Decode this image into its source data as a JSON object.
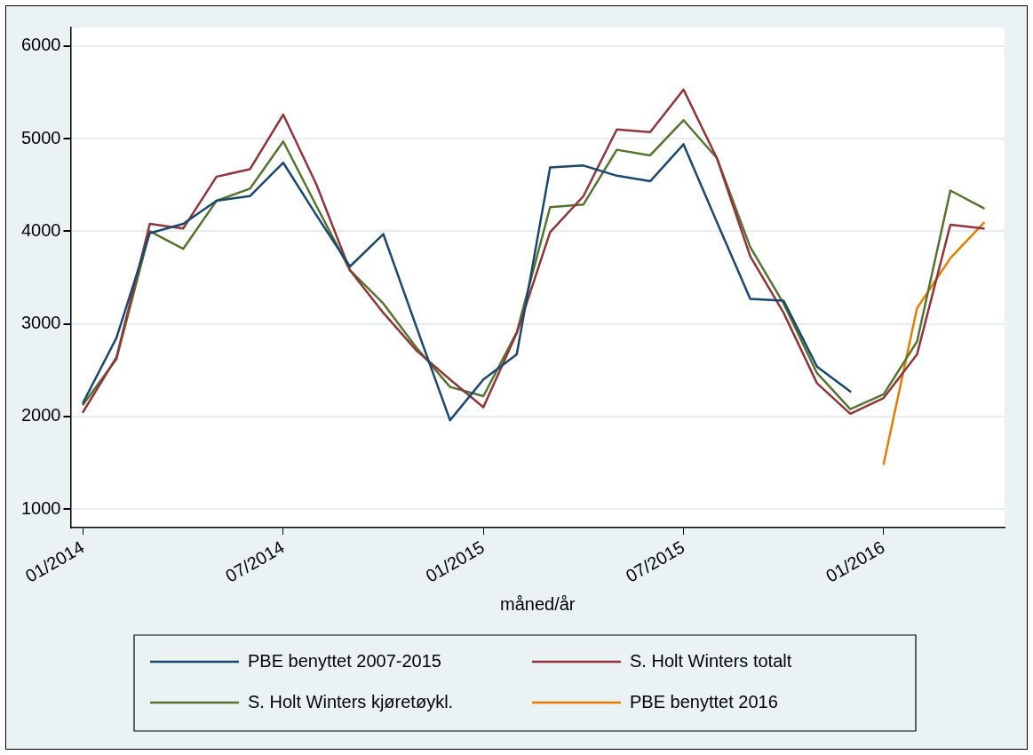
{
  "chart_data": {
    "type": "line",
    "xlabel": "måned/år",
    "x": [
      "2014-01",
      "2014-02",
      "2014-03",
      "2014-04",
      "2014-05",
      "2014-06",
      "2014-07",
      "2014-08",
      "2014-09",
      "2014-10",
      "2014-11",
      "2014-12",
      "2015-01",
      "2015-02",
      "2015-03",
      "2015-04",
      "2015-05",
      "2015-06",
      "2015-07",
      "2015-08",
      "2015-09",
      "2015-10",
      "2015-11",
      "2015-12",
      "2016-01",
      "2016-02",
      "2016-03",
      "2016-04"
    ],
    "series": [
      {
        "name": "PBE benyttet 2007-2015",
        "color": "#1a476f",
        "values": [
          2150,
          2850,
          3980,
          4080,
          4330,
          4380,
          4740,
          4170,
          3620,
          3970,
          2960,
          1960,
          2400,
          2670,
          4690,
          4710,
          4600,
          4540,
          4940,
          4100,
          3270,
          3250,
          2540,
          2270,
          null,
          null,
          null,
          null
        ]
      },
      {
        "name": "S. Holt Winters totalt",
        "color": "#90353b",
        "values": [
          2050,
          2640,
          4080,
          4030,
          4590,
          4670,
          5260,
          4500,
          3580,
          3120,
          2710,
          2400,
          2100,
          2900,
          3990,
          4380,
          5100,
          5070,
          5530,
          4790,
          3730,
          3120,
          2360,
          2030,
          2200,
          2670,
          4070,
          4030
        ]
      },
      {
        "name": "S. Holt Winters kjøretøykl.",
        "color": "#55752f",
        "values": [
          2130,
          2620,
          4000,
          3810,
          4330,
          4460,
          4970,
          4270,
          3580,
          3220,
          2740,
          2320,
          2220,
          2910,
          4260,
          4290,
          4880,
          4820,
          5200,
          4790,
          3830,
          3220,
          2470,
          2080,
          2240,
          2810,
          4440,
          4250
        ]
      },
      {
        "name": "PBE benyttet 2016",
        "color": "#e37e00",
        "values": [
          null,
          null,
          null,
          null,
          null,
          null,
          null,
          null,
          null,
          null,
          null,
          null,
          null,
          null,
          null,
          null,
          null,
          null,
          null,
          null,
          null,
          null,
          null,
          null,
          1490,
          3170,
          3710,
          4090
        ]
      }
    ],
    "xlim": [
      "2013-12-20",
      "2016-04-20"
    ],
    "xticks": [
      {
        "value": "2014-01",
        "label": "01/2014"
      },
      {
        "value": "2014-07",
        "label": "07/2014"
      },
      {
        "value": "2015-01",
        "label": "01/2015"
      },
      {
        "value": "2015-07",
        "label": "07/2015"
      },
      {
        "value": "2016-01",
        "label": "01/2016"
      }
    ],
    "ylim": [
      800,
      6200
    ],
    "yticks": [
      1000,
      2000,
      3000,
      4000,
      5000,
      6000
    ],
    "grid": "y",
    "legend": "bottom",
    "marker": "none",
    "line_style": "solid"
  }
}
